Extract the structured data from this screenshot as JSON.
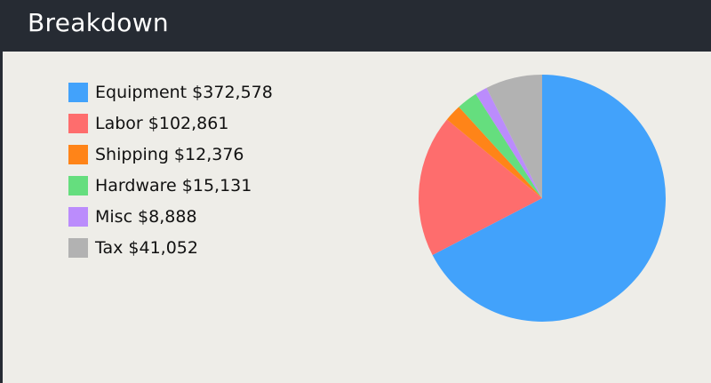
{
  "header": {
    "title": "Breakdown"
  },
  "legend": {
    "items": [
      {
        "text": "Equipment $372,578",
        "color": "#42a2fb"
      },
      {
        "text": "Labor $102,861",
        "color": "#fe6d6d"
      },
      {
        "text": "Shipping $12,376",
        "color": "#ff8418"
      },
      {
        "text": "Hardware $15,131",
        "color": "#65de7e"
      },
      {
        "text": "Misc $8,888",
        "color": "#bb8cfc"
      },
      {
        "text": "Tax $41,052",
        "color": "#b2b2b2"
      }
    ]
  },
  "chart_data": {
    "type": "pie",
    "title": "Breakdown",
    "start_angle": "12 o'clock",
    "direction": "clockwise",
    "slices": [
      {
        "label": "Equipment",
        "value": 372578,
        "color": "#42a2fb"
      },
      {
        "label": "Labor",
        "value": 102861,
        "color": "#fe6d6d"
      },
      {
        "label": "Shipping",
        "value": 12376,
        "color": "#ff8418"
      },
      {
        "label": "Hardware",
        "value": 15131,
        "color": "#65de7e"
      },
      {
        "label": "Misc",
        "value": 8888,
        "color": "#bb8cfc"
      },
      {
        "label": "Tax",
        "value": 41052,
        "color": "#b2b2b2"
      }
    ],
    "legend_position": "left"
  }
}
